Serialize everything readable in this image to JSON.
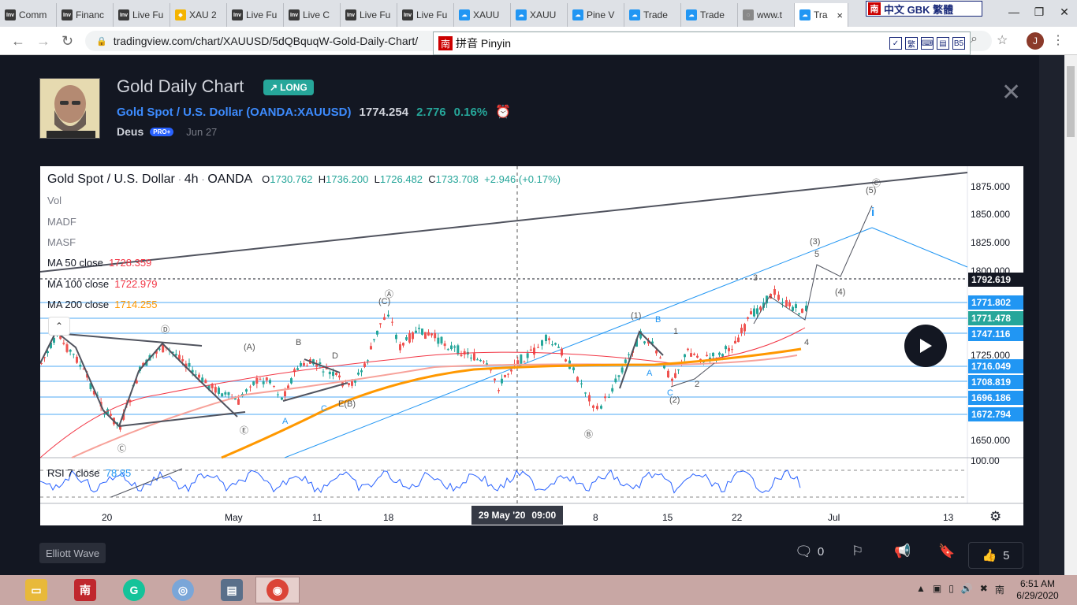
{
  "browser": {
    "tabs": [
      {
        "label": "Comm",
        "icon": "inv"
      },
      {
        "label": "Financ",
        "icon": "inv"
      },
      {
        "label": "Live Fu",
        "icon": "inv"
      },
      {
        "label": "XAU 2",
        "icon": "diamond"
      },
      {
        "label": "Live Fu",
        "icon": "inv"
      },
      {
        "label": "Live C",
        "icon": "inv"
      },
      {
        "label": "Live Fu",
        "icon": "inv"
      },
      {
        "label": "Live Fu",
        "icon": "inv"
      },
      {
        "label": "XAUU",
        "icon": "tv"
      },
      {
        "label": "XAUU",
        "icon": "tv"
      },
      {
        "label": "Pine V",
        "icon": "tv"
      },
      {
        "label": "Trade",
        "icon": "tv"
      },
      {
        "label": "Trade",
        "icon": "tv"
      },
      {
        "label": "www.t",
        "icon": "globe"
      }
    ],
    "active_tab": {
      "label": "Tra",
      "close": "×"
    },
    "ime_top": {
      "badge": "南",
      "label": "中文 GBK 繁體"
    },
    "url": "tradingview.com/chart/XAUUSD/5dQBquqW-Gold-Daily-Chart/",
    "ime_bar": {
      "badge": "南",
      "label": "拼音 Pinyin",
      "tools": [
        "✓",
        "繁",
        "⌨",
        "▤",
        "B5"
      ]
    },
    "profile_initial": "J"
  },
  "idea": {
    "title": "Gold Daily Chart",
    "badge": "LONG",
    "symbol_name": "Gold Spot / U.S. Dollar",
    "symbol_code": "(OANDA:XAUUSD)",
    "price": "1774.254",
    "change": "2.776",
    "change_pct": "0.16%",
    "author": "Deus",
    "author_badge": "PRO+",
    "date": "Jun 27",
    "tag": "Elliott Wave",
    "comments": "0",
    "likes": "5"
  },
  "chart_header": {
    "symbol": "Gold Spot / U.S. Dollar",
    "timeframe": "4h",
    "exchange": "OANDA",
    "open_label": "O",
    "open": "1730.762",
    "high_label": "H",
    "high": "1736.200",
    "low_label": "L",
    "low": "1726.482",
    "close_label": "C",
    "close": "1733.708",
    "change": "+2.946 (+0.17%)",
    "indicators": [
      "Vol",
      "MADF",
      "MASF"
    ],
    "ma50": {
      "label": "MA 50 close",
      "value": "1728.359",
      "color": "#f23645"
    },
    "ma100": {
      "label": "MA 100 close",
      "value": "1722.979",
      "color": "#f7a29a"
    },
    "ma200": {
      "label": "MA 200 close",
      "value": "1714.255",
      "color": "#ff9800"
    },
    "rsi": {
      "label": "RSI 7 close",
      "value": "78.85",
      "level": "100.00"
    }
  },
  "y_axis": [
    "1875.000",
    "1850.000",
    "1825.000",
    "1800.000",
    "1725.000",
    "1650.000"
  ],
  "price_tags": [
    {
      "value": "1792.619",
      "color": "#131722"
    },
    {
      "value": "1771.802",
      "color": "#2196f3"
    },
    {
      "value": "1771.478",
      "color": "#26a69a"
    },
    {
      "value": "1747.116",
      "color": "#2196f3"
    },
    {
      "value": "1716.049",
      "color": "#2196f3"
    },
    {
      "value": "1708.819",
      "color": "#2196f3"
    },
    {
      "value": "1696.186",
      "color": "#2196f3"
    },
    {
      "value": "1672.794",
      "color": "#2196f3"
    }
  ],
  "x_axis": [
    "20",
    "May",
    "11",
    "18",
    "8",
    "15",
    "22",
    "Jul",
    "13"
  ],
  "crosshair": {
    "date": "29 May '20",
    "time": "09:00"
  },
  "waves": [
    "Ⓐ",
    "(C)",
    "(1)",
    "B",
    "1",
    "A",
    "C",
    "(2)",
    "2",
    "Ⓑ",
    "(3)",
    "3",
    "5",
    "(4)",
    "4",
    "(5)",
    "Ⓒ",
    "i",
    "Ⓒ",
    "Ⓓ",
    "(A)",
    "B",
    "D",
    "C",
    "E(B)",
    "A",
    "Ⓔ"
  ],
  "taskbar": {
    "time": "6:51 AM",
    "date": "6/29/2020"
  }
}
